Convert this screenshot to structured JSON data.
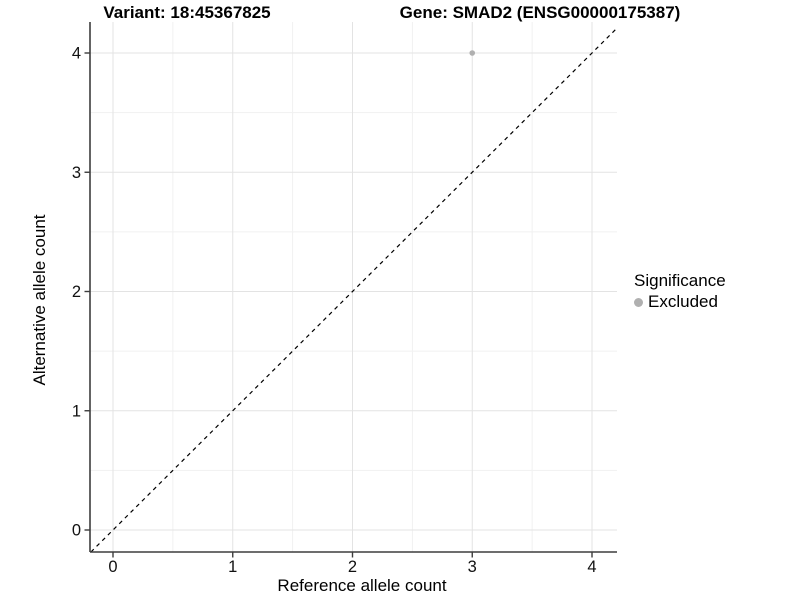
{
  "titles": {
    "left": "Variant: 18:45367825",
    "right": "Gene: SMAD2 (ENSG00000175387)"
  },
  "axes": {
    "x_label": "Reference allele count",
    "y_label": "Alternative allele count"
  },
  "legend": {
    "title": "Significance",
    "items": [
      {
        "label": "Excluded",
        "color": "#b0b0b0"
      }
    ]
  },
  "chart_data": {
    "type": "scatter",
    "title_left": "Variant: 18:45367825",
    "title_right": "Gene: SMAD2 (ENSG00000175387)",
    "xlabel": "Reference allele count",
    "ylabel": "Alternative allele count",
    "xlim": [
      -0.19,
      4.21
    ],
    "ylim": [
      -0.19,
      4.26
    ],
    "x_ticks": [
      0,
      1,
      2,
      3,
      4
    ],
    "y_ticks": [
      0,
      1,
      2,
      3,
      4
    ],
    "minor_ticks": [
      0.5,
      1.5,
      2.5,
      3.5
    ],
    "grid": {
      "major": true,
      "minor": true
    },
    "series": [
      {
        "name": "Excluded",
        "color": "#b0b0b0",
        "points": [
          {
            "x": 3,
            "y": 4
          }
        ]
      }
    ],
    "reference_line": {
      "slope": 1,
      "intercept": 0,
      "style": "dashed",
      "color": "#000000"
    },
    "legend_position": "right",
    "colors": {
      "grid_major": "#e3e3e3",
      "grid_minor": "#f1f1f1",
      "axis_line": "#3d3d3d",
      "tick_text": "#111111"
    }
  }
}
